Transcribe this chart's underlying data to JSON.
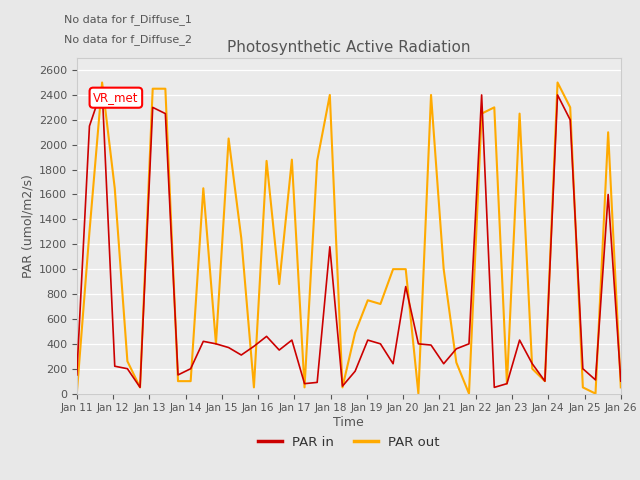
{
  "title": "Photosynthetic Active Radiation",
  "xlabel": "Time",
  "ylabel": "PAR (umol/m2/s)",
  "annotations": [
    "No data for f_Diffuse_1",
    "No data for f_Diffuse_2"
  ],
  "vr_met_label": "VR_met",
  "legend_entries": [
    "PAR in",
    "PAR out"
  ],
  "par_in_color": "#cc0000",
  "par_out_color": "#ffaa00",
  "fig_bg_color": "#e8e8e8",
  "plot_bg_color": "#ebebeb",
  "ylim": [
    0,
    2700
  ],
  "x_tick_labels": [
    "Jan 11",
    "Jan 12",
    "Jan 13",
    "Jan 14",
    "Jan 15",
    "Jan 16",
    "Jan 17",
    "Jan 18",
    "Jan 19",
    "Jan 20",
    "Jan 21",
    "Jan 22",
    "Jan 23",
    "Jan 24",
    "Jan 25",
    "Jan 26"
  ],
  "par_in": [
    150,
    2150,
    2450,
    220,
    200,
    50,
    2300,
    2250,
    150,
    200,
    420,
    400,
    370,
    310,
    380,
    460,
    350,
    430,
    80,
    90,
    1180,
    60,
    180,
    430,
    400,
    240,
    860,
    400,
    390,
    240,
    360,
    400,
    2400,
    50,
    80,
    430,
    240,
    100,
    2400,
    2200,
    200,
    110,
    1600,
    100
  ],
  "par_out": [
    0,
    1300,
    2500,
    1650,
    260,
    50,
    2450,
    2450,
    100,
    100,
    1650,
    400,
    2050,
    1250,
    50,
    1870,
    880,
    1880,
    50,
    1870,
    2400,
    50,
    490,
    750,
    720,
    1000,
    1000,
    0,
    2400,
    1000,
    250,
    0,
    2250,
    2300,
    80,
    2250,
    200,
    100,
    2500,
    2300,
    50,
    0,
    2100,
    50
  ],
  "n_points": 44
}
